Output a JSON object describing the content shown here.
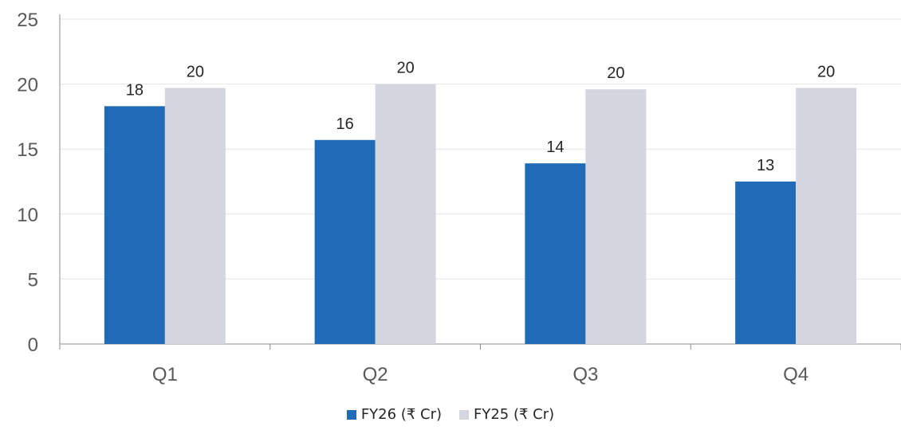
{
  "chart_data": {
    "type": "bar",
    "categories": [
      "Q1",
      "Q2",
      "Q3",
      "Q4"
    ],
    "series": [
      {
        "name": "FY26 (₹ Cr)",
        "color": "#1f6bb8",
        "values": [
          18.3,
          15.7,
          13.9,
          12.5
        ],
        "labels": [
          "18",
          "16",
          "14",
          "13"
        ]
      },
      {
        "name": "FY25 (₹ Cr)",
        "color": "#d3d6de",
        "values": [
          19.7,
          20.0,
          19.6,
          19.7
        ],
        "labels": [
          "20",
          "20",
          "20",
          "20"
        ]
      }
    ],
    "ylim": [
      0,
      25
    ],
    "yticks": [
      0,
      5,
      10,
      15,
      20,
      25
    ],
    "grid": true,
    "legend": "bottom-center"
  }
}
